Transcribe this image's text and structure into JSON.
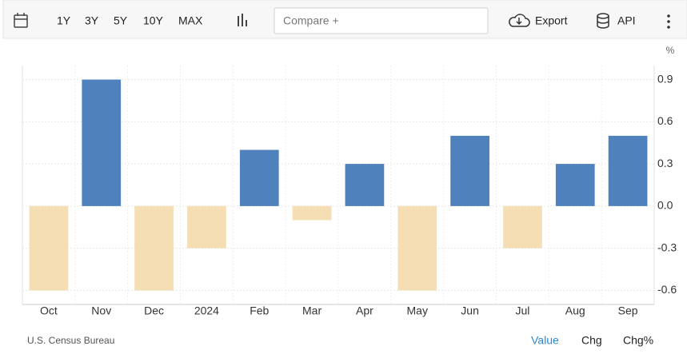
{
  "toolbar": {
    "ranges": [
      "1Y",
      "3Y",
      "5Y",
      "10Y",
      "MAX"
    ],
    "compare": "Compare +",
    "export": "Export",
    "api": "API"
  },
  "chart_data": {
    "type": "bar",
    "y_label": "%",
    "categories": [
      "Oct",
      "Nov",
      "Dec",
      "2024",
      "Feb",
      "Mar",
      "Apr",
      "May",
      "Jun",
      "Jul",
      "Aug",
      "Sep"
    ],
    "values": [
      -0.6,
      0.9,
      -0.6,
      -0.3,
      0.4,
      -0.1,
      0.3,
      -0.6,
      0.5,
      -0.3,
      0.3,
      0.5
    ],
    "color": "#4f81bd",
    "negative_color": "#f5deb3",
    "ylim": [
      -0.7,
      1.0
    ],
    "yticks": [
      0.9,
      0.6,
      0.3,
      {
        "value": 0,
        "label": "0.0"
      },
      -0.3,
      -0.6
    ],
    "grid": true
  },
  "footer": {
    "source": "U.S. Census Bureau",
    "tabs": [
      "Value",
      "Chg",
      "Chg%"
    ]
  }
}
